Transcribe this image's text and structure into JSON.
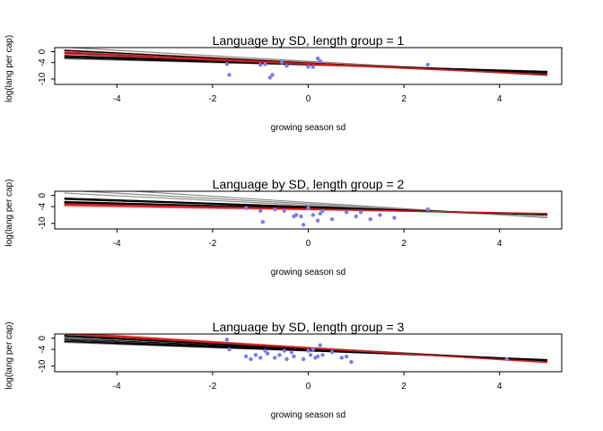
{
  "colors": {
    "points": "#7b7bf0",
    "black_lines": "#000000",
    "gray_lines": "#8c8c8c",
    "red_lines": "#d41d1d",
    "red_light_lines": "#f0a0a0"
  },
  "chart_data": [
    {
      "type": "scatter",
      "title": "Language by SD, length group = 1",
      "xlabel": "growing season sd",
      "ylabel": "log(lang per cap)",
      "xlim": [
        -5.3,
        5.3
      ],
      "ylim": [
        -12,
        1.5
      ],
      "xticks": [
        "-4",
        "-2",
        "0",
        "2",
        "4"
      ],
      "yticks": [
        "0",
        "-4",
        "-10"
      ],
      "points": {
        "x": [
          -1.7,
          -1.65,
          -1.0,
          -0.9,
          -0.8,
          -0.75,
          -0.55,
          -0.45,
          0.0,
          0.1,
          0.2,
          0.25,
          2.5
        ],
        "y": [
          -4.5,
          -8.5,
          -4.8,
          -4.6,
          -9.5,
          -8.5,
          -3.9,
          -5.2,
          -5.5,
          -5.6,
          -2.5,
          -3.5,
          -4.8
        ]
      },
      "black_lines": [
        [
          -4.5,
          -0.6
        ],
        [
          -4.2,
          -0.75
        ],
        [
          -4.8,
          -0.5
        ],
        [
          -4.1,
          -0.9
        ],
        [
          -4.6,
          -0.55
        ]
      ],
      "gray_lines": [
        [
          -4.0,
          -0.8
        ],
        [
          -3.5,
          -1.0
        ],
        [
          -4.9,
          -0.45
        ],
        [
          -3.8,
          -0.85
        ]
      ],
      "red_lines": [
        [
          -4.3,
          -0.8
        ],
        [
          -4.6,
          -0.75
        ]
      ],
      "red_light_lines": [
        [
          -3.9,
          -0.9
        ]
      ]
    },
    {
      "type": "scatter",
      "title": "Language by SD, length group = 2",
      "xlabel": "growing season sd",
      "ylabel": "log(lang per cap)",
      "xlim": [
        -5.3,
        5.3
      ],
      "ylim": [
        -12,
        1.5
      ],
      "xticks": [
        "-4",
        "-2",
        "0",
        "2",
        "4"
      ],
      "yticks": [
        "0",
        "-4",
        "-10"
      ],
      "points": {
        "x": [
          -1.3,
          -1.0,
          -0.95,
          -0.7,
          -0.5,
          -0.3,
          -0.25,
          -0.15,
          -0.1,
          0.0,
          0.1,
          0.2,
          0.25,
          0.3,
          0.5,
          0.8,
          1.0,
          1.1,
          1.3,
          1.5,
          1.8,
          2.5
        ],
        "y": [
          -4.5,
          -5.5,
          -9.5,
          -5.0,
          -5.5,
          -7.5,
          -7.0,
          -7.5,
          -10.5,
          -4.5,
          -7.0,
          -9.0,
          -6.5,
          -5.5,
          -8.5,
          -6.0,
          -7.5,
          -6.0,
          -8.5,
          -7.0,
          -8.0,
          -5.0
        ]
      },
      "black_lines": [
        [
          -4.5,
          -0.45
        ],
        [
          -4.2,
          -0.55
        ],
        [
          -4.8,
          -0.4
        ],
        [
          -4.0,
          -0.6
        ],
        [
          -4.6,
          -0.42
        ]
      ],
      "gray_lines": [
        [
          -3.0,
          -0.95
        ],
        [
          -2.5,
          -1.1
        ],
        [
          -3.5,
          -0.85
        ],
        [
          -4.9,
          -0.3
        ]
      ],
      "red_lines": [
        [
          -5.0,
          -0.3
        ],
        [
          -4.8,
          -0.35
        ]
      ],
      "red_light_lines": [
        [
          -5.2,
          -0.25
        ]
      ]
    },
    {
      "type": "scatter",
      "title": "Language by SD, length group = 3",
      "xlabel": "growing season sd",
      "ylabel": "log(lang per cap)",
      "xlim": [
        -5.3,
        5.3
      ],
      "ylim": [
        -12,
        1.5
      ],
      "xticks": [
        "-4",
        "-2",
        "0",
        "2",
        "4"
      ],
      "yticks": [
        "0",
        "-4",
        "-10"
      ],
      "points": {
        "x": [
          -1.7,
          -1.65,
          -1.3,
          -1.2,
          -1.1,
          -1.0,
          -0.9,
          -0.85,
          -0.7,
          -0.6,
          -0.5,
          -0.45,
          -0.35,
          -0.3,
          -0.1,
          0.0,
          0.05,
          0.1,
          0.15,
          0.2,
          0.25,
          0.3,
          0.5,
          0.7,
          0.8,
          0.9,
          4.15
        ],
        "y": [
          -0.5,
          -4.0,
          -6.5,
          -7.5,
          -6.0,
          -7.0,
          -4.5,
          -5.5,
          -7.0,
          -6.0,
          -4.5,
          -7.5,
          -5.0,
          -6.5,
          -7.5,
          -4.5,
          -6.0,
          -4.0,
          -7.0,
          -6.5,
          -2.5,
          -6.0,
          -5.0,
          -7.0,
          -6.5,
          -8.5,
          -7.5
        ]
      },
      "black_lines": [
        [
          -4.0,
          -0.75
        ],
        [
          -3.8,
          -0.85
        ],
        [
          -4.3,
          -0.7
        ],
        [
          -3.6,
          -0.9
        ],
        [
          -4.5,
          -0.65
        ]
      ],
      "gray_lines": [
        [
          -3.4,
          -0.95
        ],
        [
          -3.2,
          -1.0
        ],
        [
          -4.6,
          -0.6
        ]
      ],
      "red_lines": [
        [
          -3.6,
          -1.0
        ],
        [
          -3.4,
          -1.05
        ]
      ],
      "red_light_lines": [
        [
          -3.3,
          -1.1
        ]
      ]
    }
  ]
}
